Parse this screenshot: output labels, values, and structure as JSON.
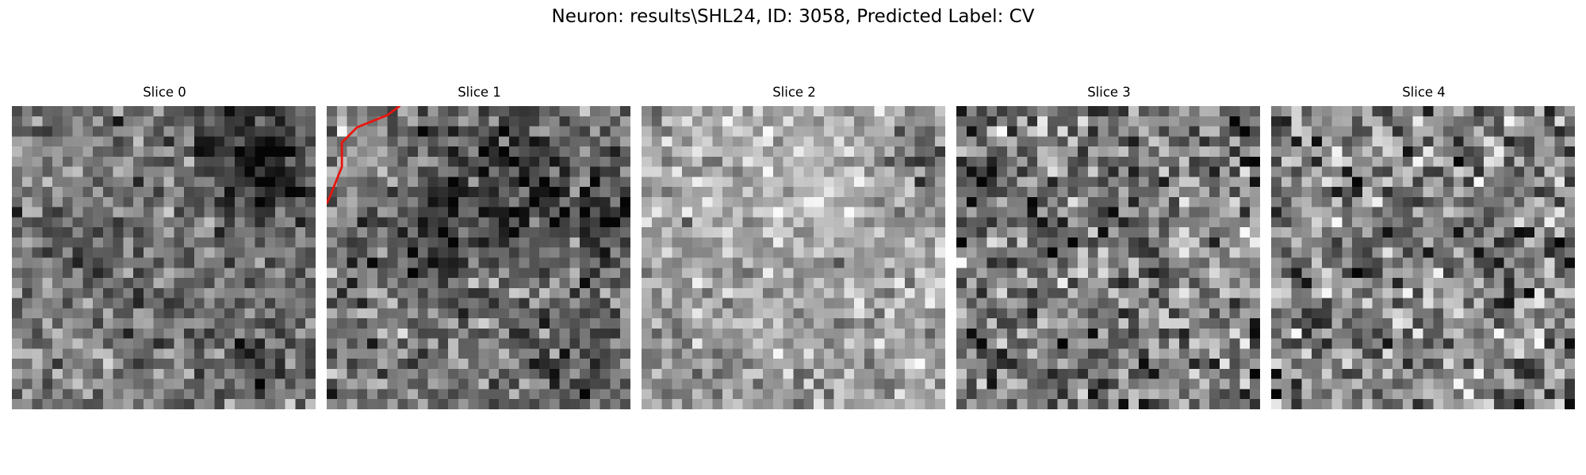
{
  "figure": {
    "suptitle": "Neuron: results\\SHL24, ID: 3058, Predicted Label: CV"
  },
  "slices": [
    {
      "title": "Slice 0",
      "seed": 11,
      "base": 118,
      "spread": 95,
      "blobs": [
        [
          0.78,
          0.12,
          0.14,
          -70
        ],
        [
          0.85,
          0.25,
          0.08,
          -60
        ],
        [
          0.25,
          0.55,
          0.12,
          -25
        ],
        [
          0.2,
          0.8,
          0.1,
          20
        ],
        [
          0.82,
          0.82,
          0.12,
          -35
        ]
      ]
    },
    {
      "title": "Slice 1",
      "seed": 23,
      "base": 120,
      "spread": 110,
      "blobs": [
        [
          0.35,
          0.38,
          0.16,
          -75
        ],
        [
          0.7,
          0.3,
          0.12,
          -60
        ],
        [
          0.95,
          0.35,
          0.07,
          -70
        ],
        [
          0.15,
          0.2,
          0.12,
          35
        ],
        [
          0.85,
          0.78,
          0.12,
          -45
        ],
        [
          0.55,
          0.12,
          0.1,
          -30
        ],
        [
          0.2,
          0.7,
          0.12,
          20
        ]
      ]
    },
    {
      "title": "Slice 2",
      "seed": 37,
      "base": 165,
      "spread": 90,
      "blobs": [
        [
          0.92,
          0.18,
          0.08,
          -80
        ],
        [
          0.55,
          0.25,
          0.18,
          25
        ],
        [
          0.1,
          0.95,
          0.12,
          -25
        ],
        [
          0.6,
          0.9,
          0.1,
          -15
        ]
      ]
    },
    {
      "title": "Slice 3",
      "seed": 53,
      "base": 128,
      "spread": 135,
      "blobs": [
        [
          0.1,
          0.27,
          0.06,
          -70
        ],
        [
          0.93,
          0.07,
          0.06,
          -60
        ],
        [
          0.95,
          0.96,
          0.05,
          -70
        ],
        [
          0.45,
          0.35,
          0.1,
          -20
        ]
      ]
    },
    {
      "title": "Slice 4",
      "seed": 71,
      "base": 132,
      "spread": 140,
      "blobs": [
        [
          0.45,
          0.35,
          0.05,
          -70
        ],
        [
          0.2,
          0.7,
          0.05,
          -65
        ],
        [
          0.99,
          0.96,
          0.04,
          -70
        ],
        [
          0.7,
          0.4,
          0.1,
          -15
        ]
      ]
    }
  ],
  "grid_cells": 30,
  "overlay": {
    "slice_index": 1,
    "color": "#e8150f",
    "points": [
      [
        0.24,
        0.0
      ],
      [
        0.2,
        0.03
      ],
      [
        0.1,
        0.07
      ],
      [
        0.05,
        0.12
      ],
      [
        0.05,
        0.2
      ],
      [
        0.01,
        0.3
      ],
      [
        0.0,
        0.32
      ]
    ]
  }
}
